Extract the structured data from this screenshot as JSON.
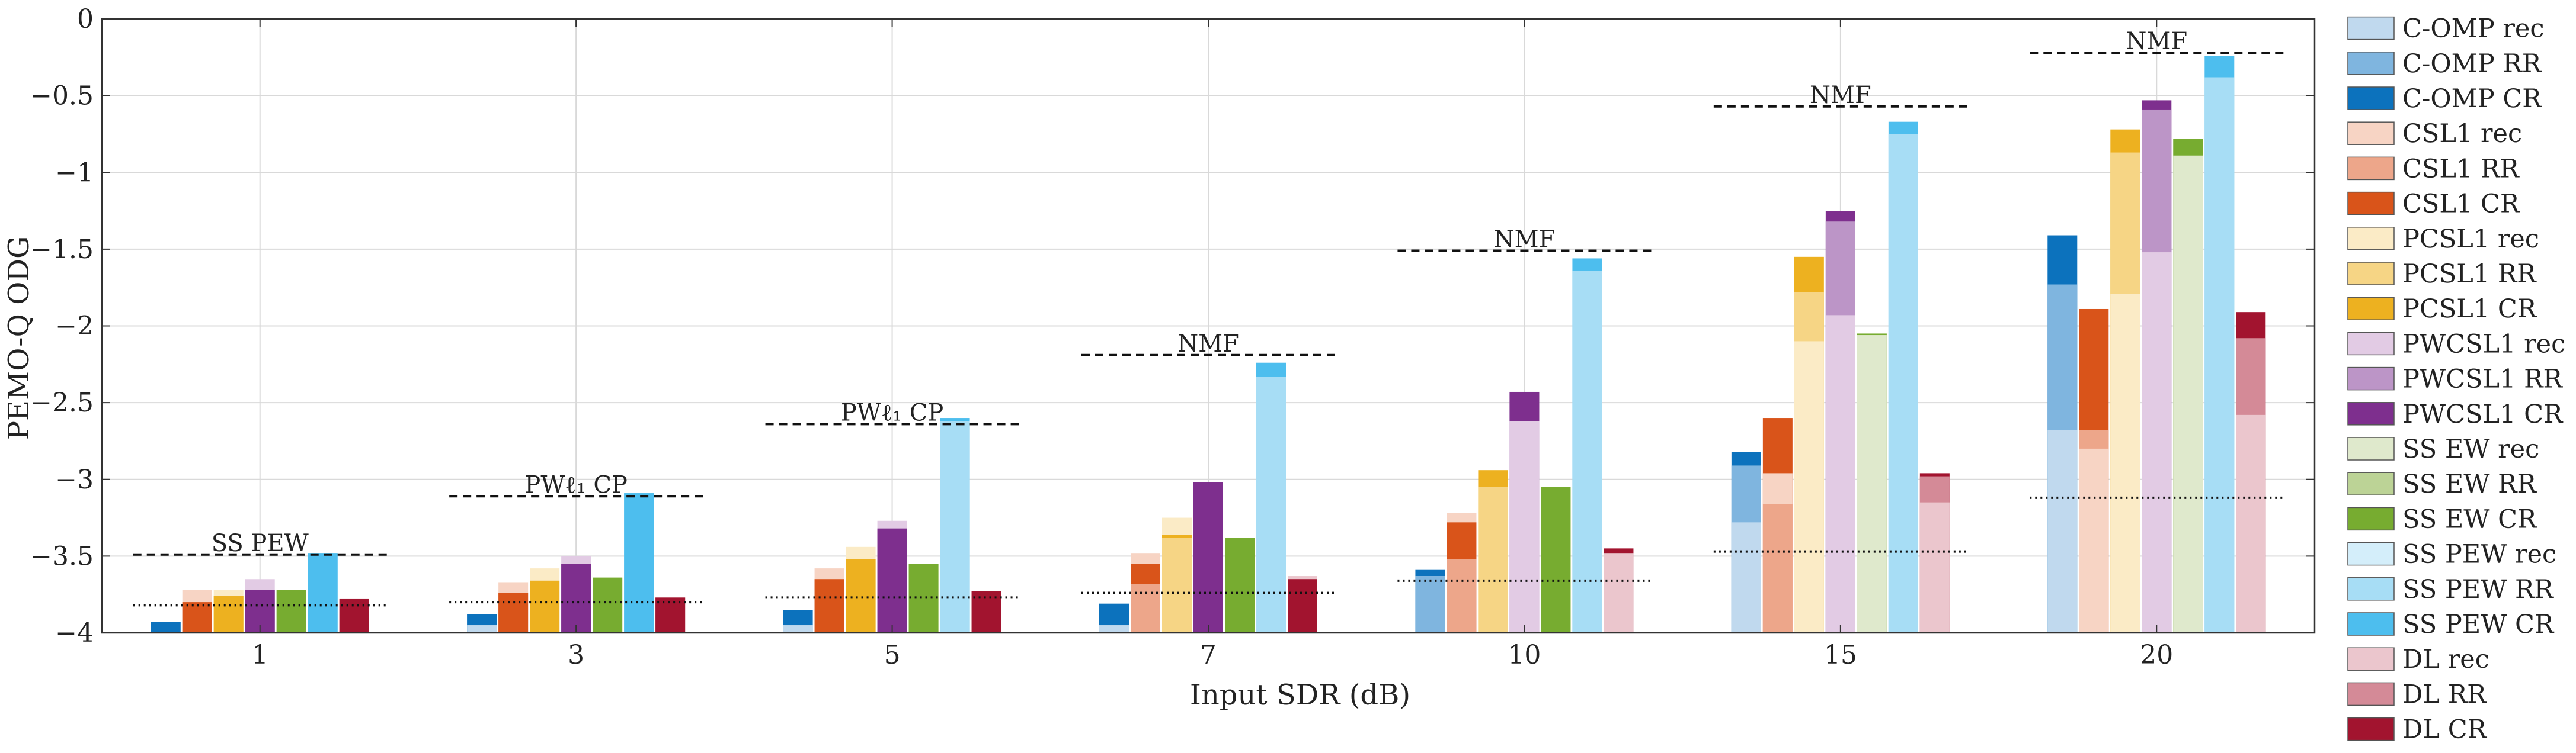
{
  "chart_data": {
    "type": "bar",
    "xlabel": "Input SDR (dB)",
    "ylabel": "PEMO-Q ODG",
    "ylim": [
      -4,
      0
    ],
    "yticks": [
      0,
      -0.5,
      -1,
      -1.5,
      -2,
      -2.5,
      -3,
      -3.5,
      -4
    ],
    "ytick_labels": [
      "0",
      "−0.5",
      "−1",
      "−1.5",
      "−2",
      "−2.5",
      "−3",
      "−3.5",
      "−4"
    ],
    "categories": [
      "1",
      "3",
      "5",
      "7",
      "10",
      "15",
      "20"
    ],
    "grid": true,
    "legend_position": "right",
    "methods": [
      {
        "name": "C-OMP",
        "colors": {
          "rec": "#c0d9ee",
          "rr": "#7fb5df",
          "cr": "#0c72bd"
        }
      },
      {
        "name": "CSL1",
        "colors": {
          "rec": "#f7d4c4",
          "rr": "#eda68a",
          "cr": "#d9541a"
        }
      },
      {
        "name": "PCSL1",
        "colors": {
          "rec": "#fbebc6",
          "rr": "#f6d585",
          "cr": "#edb120"
        }
      },
      {
        "name": "PWCSL1",
        "colors": {
          "rec": "#e2cbe4",
          "rr": "#bc95c7",
          "cr": "#7e2f8e"
        }
      },
      {
        "name": "SS EW",
        "colors": {
          "rec": "#dfe9cc",
          "rr": "#bcd396",
          "cr": "#77ac30"
        }
      },
      {
        "name": "SS PEW",
        "colors": {
          "rec": "#d4eefa",
          "rr": "#a7ddf5",
          "cr": "#4dbeee"
        }
      },
      {
        "name": "DL",
        "colors": {
          "rec": "#ebc6cd",
          "rr": "#d48a97",
          "cr": "#a2142f"
        }
      }
    ],
    "legend": [
      {
        "label": "C-OMP rec",
        "color": "#c0d9ee"
      },
      {
        "label": "C-OMP RR",
        "color": "#7fb5df"
      },
      {
        "label": "C-OMP CR",
        "color": "#0c72bd"
      },
      {
        "label": "CSL1 rec",
        "color": "#f7d4c4"
      },
      {
        "label": "CSL1 RR",
        "color": "#eda68a"
      },
      {
        "label": "CSL1 CR",
        "color": "#d9541a"
      },
      {
        "label": "PCSL1 rec",
        "color": "#fbebc6"
      },
      {
        "label": "PCSL1 RR",
        "color": "#f6d585"
      },
      {
        "label": "PCSL1 CR",
        "color": "#edb120"
      },
      {
        "label": "PWCSL1 rec",
        "color": "#e2cbe4"
      },
      {
        "label": "PWCSL1 RR",
        "color": "#bc95c7"
      },
      {
        "label": "PWCSL1 CR",
        "color": "#7e2f8e"
      },
      {
        "label": "SS EW rec",
        "color": "#dfe9cc"
      },
      {
        "label": "SS EW RR",
        "color": "#bcd396"
      },
      {
        "label": "SS EW CR",
        "color": "#77ac30"
      },
      {
        "label": "SS PEW rec",
        "color": "#d4eefa"
      },
      {
        "label": "SS PEW RR",
        "color": "#a7ddf5"
      },
      {
        "label": "SS PEW CR",
        "color": "#4dbeee"
      },
      {
        "label": "DL rec",
        "color": "#ebc6cd"
      },
      {
        "label": "DL RR",
        "color": "#d48a97"
      },
      {
        "label": "DL CR",
        "color": "#a2142f"
      }
    ],
    "bars": [
      [
        {
          "rec": -3.93,
          "rr": -3.93,
          "cr": -3.93
        },
        {
          "rec": -3.72,
          "rr": -3.8,
          "cr": -3.8
        },
        {
          "rec": -3.72,
          "rr": -3.76,
          "cr": -3.76
        },
        {
          "rec": -3.65,
          "rr": -3.72,
          "cr": -3.72
        },
        {
          "rec": -3.72,
          "rr": -3.72,
          "cr": -3.72
        },
        {
          "rec": -3.48,
          "rr": -3.48,
          "cr": -3.48
        },
        {
          "rec": -3.78,
          "rr": -3.78,
          "cr": -3.78
        }
      ],
      [
        {
          "rec": -3.95,
          "rr": -3.88,
          "cr": -3.88
        },
        {
          "rec": -3.67,
          "rr": -3.74,
          "cr": -3.74
        },
        {
          "rec": -3.58,
          "rr": -3.66,
          "cr": -3.66
        },
        {
          "rec": -3.5,
          "rr": -3.55,
          "cr": -3.55
        },
        {
          "rec": -3.64,
          "rr": -3.64,
          "cr": -3.64
        },
        {
          "rec": -3.09,
          "rr": -3.09,
          "cr": -3.09
        },
        {
          "rec": -3.77,
          "rr": -3.77,
          "cr": -3.77
        }
      ],
      [
        {
          "rec": -3.95,
          "rr": -3.85,
          "cr": -3.85
        },
        {
          "rec": -3.58,
          "rr": -3.65,
          "cr": -3.65
        },
        {
          "rec": -3.44,
          "rr": -3.52,
          "cr": -3.52
        },
        {
          "rec": -3.27,
          "rr": -3.32,
          "cr": -3.32
        },
        {
          "rec": -3.55,
          "rr": -3.55,
          "cr": -3.55
        },
        {
          "rec": -2.62,
          "rr": -2.62,
          "cr": -2.6
        },
        {
          "rec": -3.73,
          "rr": -3.73,
          "cr": -3.73
        }
      ],
      [
        {
          "rec": -3.95,
          "rr": -3.81,
          "cr": -3.81
        },
        {
          "rec": -3.48,
          "rr": -3.68,
          "cr": -3.55
        },
        {
          "rec": -3.25,
          "rr": -3.38,
          "cr": -3.36
        },
        {
          "rec": -4.0,
          "rr": -3.02,
          "cr": -3.02
        },
        {
          "rec": -3.38,
          "rr": -3.38,
          "cr": -3.38
        },
        {
          "rec": -2.33,
          "rr": -2.33,
          "cr": -2.24
        },
        {
          "rec": -3.63,
          "rr": -3.65,
          "cr": -3.65
        }
      ],
      [
        {
          "rec": -3.63,
          "rr": -3.63,
          "cr": -3.59
        },
        {
          "rec": -3.22,
          "rr": -3.52,
          "cr": -3.28
        },
        {
          "rec": -3.05,
          "rr": -3.05,
          "cr": -2.94
        },
        {
          "rec": -2.62,
          "rr": -2.43,
          "cr": -2.43
        },
        {
          "rec": -3.05,
          "rr": -3.05,
          "cr": -3.05
        },
        {
          "rec": -1.64,
          "rr": -1.64,
          "cr": -1.56
        },
        {
          "rec": -3.48,
          "rr": -3.45,
          "cr": -3.45
        }
      ],
      [
        {
          "rec": -3.28,
          "rr": -2.91,
          "cr": -2.82
        },
        {
          "rec": -2.96,
          "rr": -3.16,
          "cr": -2.6
        },
        {
          "rec": -2.1,
          "rr": -1.78,
          "cr": -1.55
        },
        {
          "rec": -1.93,
          "rr": -1.32,
          "cr": -1.25
        },
        {
          "rec": -2.06,
          "rr": -2.05,
          "cr": -2.05
        },
        {
          "rec": -0.75,
          "rr": -0.75,
          "cr": -0.67
        },
        {
          "rec": -3.15,
          "rr": -2.98,
          "cr": -2.96
        }
      ],
      [
        {
          "rec": -2.68,
          "rr": -1.73,
          "cr": -1.41
        },
        {
          "rec": -2.8,
          "rr": -2.68,
          "cr": -1.89
        },
        {
          "rec": -1.79,
          "rr": -0.87,
          "cr": -0.72
        },
        {
          "rec": -1.52,
          "rr": -0.59,
          "cr": -0.53
        },
        {
          "rec": -0.89,
          "rr": -0.78,
          "cr": -0.78
        },
        {
          "rec": -0.38,
          "rr": -0.38,
          "cr": -0.24
        },
        {
          "rec": -2.58,
          "rr": -2.08,
          "cr": -1.91
        }
      ]
    ],
    "best_reference": [
      {
        "category": "1",
        "label": "SS PEW",
        "value": -3.49
      },
      {
        "category": "3",
        "label": "PWℓ₁ CP",
        "value": -3.11
      },
      {
        "category": "5",
        "label": "PWℓ₁ CP",
        "value": -2.64
      },
      {
        "category": "7",
        "label": "NMF",
        "value": -2.19
      },
      {
        "category": "10",
        "label": "NMF",
        "value": -1.51
      },
      {
        "category": "15",
        "label": "NMF",
        "value": -0.57
      },
      {
        "category": "20",
        "label": "NMF",
        "value": -0.22
      }
    ],
    "input_reference": [
      -3.82,
      -3.8,
      -3.77,
      -3.74,
      -3.66,
      -3.47,
      -3.12
    ]
  }
}
